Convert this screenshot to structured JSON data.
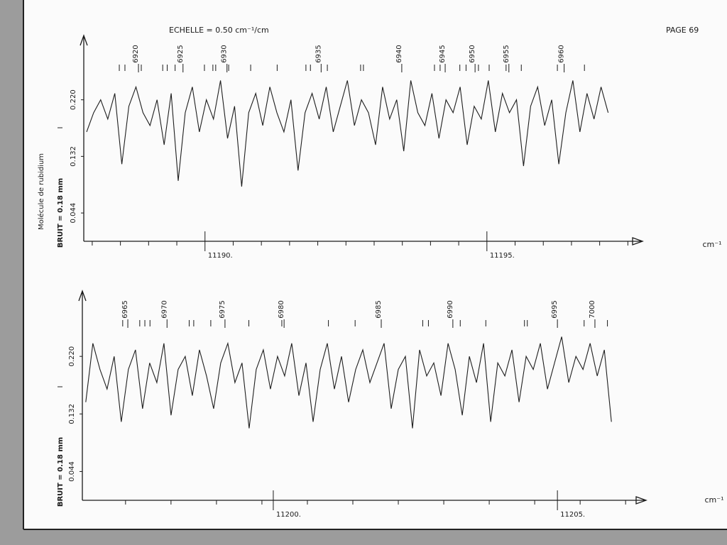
{
  "page": {
    "scale": "ECHELLE = 0.50 cm⁻¹/cm",
    "page_number": "PAGE 69",
    "molecule": "Molécule de rubidium"
  },
  "chart_data": [
    {
      "type": "line",
      "ylabel": "I",
      "noise": "BRUIT = 0.18 mm",
      "xlabel": "cm⁻¹",
      "color": "#1e1e1e",
      "xlim": [
        11187.85,
        11197.76
      ],
      "ylim": [
        0,
        0.32
      ],
      "xticks": [
        {
          "value": 11190,
          "label": "11190."
        },
        {
          "value": 11195,
          "label": "11195."
        }
      ],
      "xminor": [
        11188,
        11188.5,
        11189,
        11189.5,
        11190.5,
        11191,
        11191.5,
        11192,
        11192.5,
        11193,
        11193.5,
        11194,
        11194.5,
        11195.5,
        11196,
        11196.5,
        11197,
        11197.5
      ],
      "yticks": [
        {
          "value": 0.22,
          "label": "0.220"
        },
        0.132,
        0.044
      ],
      "x": [
        11187.9,
        11188.025,
        11188.15,
        11188.275,
        11188.4,
        11188.525,
        11188.65,
        11188.775,
        11188.9,
        11189.025,
        11189.15,
        11189.275,
        11189.4,
        11189.525,
        11189.65,
        11189.775,
        11189.9,
        11190.025,
        11190.15,
        11190.275,
        11190.4,
        11190.525,
        11190.65,
        11190.775,
        11190.9,
        11191.025,
        11191.15,
        11191.275,
        11191.4,
        11191.525,
        11191.65,
        11191.775,
        11191.9,
        11192.025,
        11192.15,
        11192.275,
        11192.4,
        11192.525,
        11192.65,
        11192.775,
        11192.9,
        11193.025,
        11193.15,
        11193.275,
        11193.4,
        11193.525,
        11193.65,
        11193.775,
        11193.9,
        11194.025,
        11194.15,
        11194.275,
        11194.4,
        11194.525,
        11194.65,
        11194.775,
        11194.9,
        11195.025,
        11195.15,
        11195.275,
        11195.4,
        11195.525,
        11195.65,
        11195.775,
        11195.9,
        11196.025,
        11196.15,
        11196.275,
        11196.4,
        11196.525,
        11196.65,
        11196.775,
        11196.9,
        11197.025,
        11197.15
      ],
      "values": [
        0.17,
        0.2,
        0.22,
        0.19,
        0.23,
        0.12,
        0.21,
        0.24,
        0.2,
        0.18,
        0.22,
        0.15,
        0.23,
        0.094,
        0.2,
        0.24,
        0.17,
        0.22,
        0.19,
        0.25,
        0.16,
        0.21,
        0.085,
        0.2,
        0.23,
        0.18,
        0.24,
        0.2,
        0.17,
        0.22,
        0.11,
        0.2,
        0.23,
        0.19,
        0.24,
        0.17,
        0.21,
        0.25,
        0.18,
        0.22,
        0.2,
        0.15,
        0.24,
        0.19,
        0.22,
        0.14,
        0.25,
        0.2,
        0.18,
        0.23,
        0.16,
        0.22,
        0.2,
        0.24,
        0.15,
        0.21,
        0.19,
        0.25,
        0.17,
        0.23,
        0.2,
        0.22,
        0.117,
        0.21,
        0.24,
        0.18,
        0.22,
        0.12,
        0.2,
        0.25,
        0.17,
        0.23,
        0.19,
        0.24,
        0.2
      ],
      "line_labels": [
        {
          "x": 11188.82,
          "label": "6920"
        },
        {
          "x": 11189.61,
          "label": "6925"
        },
        {
          "x": 11190.39,
          "label": "6930"
        },
        {
          "x": 11192.06,
          "label": "6935"
        },
        {
          "x": 11193.49,
          "label": "6940"
        },
        {
          "x": 11194.26,
          "label": "6945"
        },
        {
          "x": 11194.79,
          "label": "6950"
        },
        {
          "x": 11195.39,
          "label": "6955"
        },
        {
          "x": 11196.37,
          "label": "6960"
        }
      ],
      "line_marks": [
        11188.48,
        11188.58,
        11188.87,
        11189.25,
        11189.33,
        11189.47,
        11189.99,
        11190.14,
        11190.19,
        11190.42,
        11190.81,
        11191.28,
        11191.79,
        11191.87,
        11192.17,
        11192.76,
        11192.81,
        11194.07,
        11194.17,
        11194.52,
        11194.63,
        11194.85,
        11195.04,
        11195.34,
        11195.61,
        11196.25,
        11196.73
      ]
    },
    {
      "type": "line",
      "ylabel": "I",
      "noise": "BRUIT = 0.18 mm",
      "xlabel": "cm⁻¹",
      "color": "#1e1e1e",
      "xlim": [
        11196.64,
        11206.56
      ],
      "ylim": [
        0,
        0.32
      ],
      "xticks": [
        {
          "value": 11200,
          "label": "11200."
        },
        {
          "value": 11205,
          "label": "11205."
        }
      ],
      "xminor": [
        11197.4,
        11198.2,
        11199.0,
        11199.8,
        11200.6,
        11201.4,
        11202.2,
        11203.0,
        11203.8,
        11204.6,
        11205.4,
        11206.2
      ],
      "yticks": [
        {
          "value": 0.22,
          "label": "0.220"
        },
        0.132,
        0.044
      ],
      "x": [
        11196.7,
        11196.825,
        11196.95,
        11197.075,
        11197.2,
        11197.325,
        11197.45,
        11197.575,
        11197.7,
        11197.825,
        11197.95,
        11198.075,
        11198.2,
        11198.325,
        11198.45,
        11198.575,
        11198.7,
        11198.825,
        11198.95,
        11199.075,
        11199.2,
        11199.325,
        11199.45,
        11199.575,
        11199.7,
        11199.825,
        11199.95,
        11200.075,
        11200.2,
        11200.325,
        11200.45,
        11200.575,
        11200.7,
        11200.825,
        11200.95,
        11201.075,
        11201.2,
        11201.325,
        11201.45,
        11201.575,
        11201.7,
        11201.825,
        11201.95,
        11202.075,
        11202.2,
        11202.325,
        11202.45,
        11202.575,
        11202.7,
        11202.825,
        11202.95,
        11203.075,
        11203.2,
        11203.325,
        11203.45,
        11203.575,
        11203.7,
        11203.825,
        11203.95,
        11204.075,
        11204.2,
        11204.325,
        11204.45,
        11204.575,
        11204.7,
        11204.825,
        11204.95,
        11205.075,
        11205.2,
        11205.325,
        11205.45,
        11205.575,
        11205.7,
        11205.825,
        11205.95
      ],
      "values": [
        0.15,
        0.24,
        0.2,
        0.17,
        0.22,
        0.12,
        0.2,
        0.23,
        0.14,
        0.21,
        0.18,
        0.24,
        0.13,
        0.2,
        0.22,
        0.16,
        0.23,
        0.19,
        0.14,
        0.21,
        0.24,
        0.18,
        0.21,
        0.11,
        0.2,
        0.23,
        0.17,
        0.22,
        0.19,
        0.24,
        0.16,
        0.21,
        0.12,
        0.2,
        0.24,
        0.17,
        0.22,
        0.15,
        0.2,
        0.23,
        0.18,
        0.21,
        0.24,
        0.14,
        0.2,
        0.22,
        0.11,
        0.23,
        0.19,
        0.21,
        0.16,
        0.24,
        0.2,
        0.13,
        0.22,
        0.18,
        0.24,
        0.12,
        0.21,
        0.19,
        0.23,
        0.15,
        0.22,
        0.2,
        0.24,
        0.17,
        0.21,
        0.25,
        0.18,
        0.22,
        0.2,
        0.24,
        0.19,
        0.23,
        0.12
      ],
      "line_labels": [
        {
          "x": 11197.44,
          "label": "6965"
        },
        {
          "x": 11198.13,
          "label": "6970"
        },
        {
          "x": 11199.15,
          "label": "6975"
        },
        {
          "x": 11200.19,
          "label": "6980"
        },
        {
          "x": 11201.9,
          "label": "6985"
        },
        {
          "x": 11203.16,
          "label": "6990"
        },
        {
          "x": 11205.0,
          "label": "6995"
        },
        {
          "x": 11205.66,
          "label": "7000"
        }
      ],
      "line_marks": [
        11197.35,
        11197.65,
        11197.74,
        11197.83,
        11198.52,
        11198.6,
        11198.9,
        11199.57,
        11200.15,
        11200.97,
        11201.44,
        11202.63,
        11202.73,
        11203.29,
        11203.74,
        11204.42,
        11204.47,
        11205.47,
        11205.88
      ]
    }
  ]
}
